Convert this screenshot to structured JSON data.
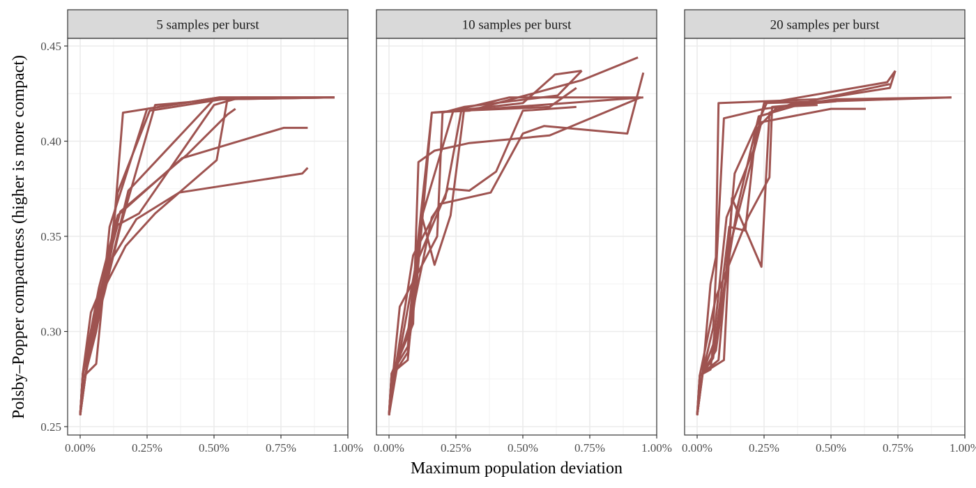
{
  "chart_data": {
    "type": "line",
    "facet_layout": "1 row x 3 columns, shared y axis",
    "xlabel": "Maximum population deviation",
    "ylabel": "Polsby–Popper compactness (higher is more compact)",
    "xlim": [
      0,
      1
    ],
    "ylim": [
      0.25,
      0.45
    ],
    "x_ticks": [
      0,
      0.25,
      0.5,
      0.75,
      1
    ],
    "x_tick_labels": [
      "0.00%",
      "0.25%",
      "0.50%",
      "0.75%",
      "1.00%"
    ],
    "y_ticks": [
      0.25,
      0.3,
      0.35,
      0.4,
      0.45
    ],
    "y_tick_labels": [
      "0.25",
      "0.30",
      "0.35",
      "0.40",
      "0.45"
    ],
    "grid": true,
    "legend": "none",
    "line_color": "#9E5350",
    "panels": [
      {
        "title": "5 samples per burst",
        "series": [
          {
            "x": [
              0.0,
              0.01,
              0.05,
              0.1,
              0.18,
              0.5,
              0.95
            ],
            "y": [
              0.256,
              0.277,
              0.305,
              0.327,
              0.374,
              0.422,
              0.423
            ]
          },
          {
            "x": [
              0.0,
              0.02,
              0.06,
              0.12,
              0.16,
              0.52,
              0.95
            ],
            "y": [
              0.256,
              0.278,
              0.3,
              0.345,
              0.415,
              0.423,
              0.423
            ]
          },
          {
            "x": [
              0.0,
              0.01,
              0.04,
              0.1,
              0.14,
              0.26,
              0.53,
              0.95
            ],
            "y": [
              0.256,
              0.278,
              0.31,
              0.33,
              0.373,
              0.416,
              0.422,
              0.423
            ]
          },
          {
            "x": [
              0.0,
              0.01,
              0.06,
              0.11,
              0.25,
              0.52,
              0.95
            ],
            "y": [
              0.256,
              0.276,
              0.283,
              0.355,
              0.417,
              0.423,
              0.423
            ]
          },
          {
            "x": [
              0.0,
              0.02,
              0.05,
              0.14,
              0.22,
              0.5,
              0.6,
              0.95
            ],
            "y": [
              0.256,
              0.277,
              0.308,
              0.356,
              0.362,
              0.419,
              0.423,
              0.423
            ]
          },
          {
            "x": [
              0.0,
              0.01,
              0.09,
              0.15,
              0.28,
              0.53,
              0.95
            ],
            "y": [
              0.256,
              0.278,
              0.32,
              0.355,
              0.419,
              0.422,
              0.423
            ]
          },
          {
            "x": [
              0.0,
              0.01,
              0.09,
              0.15,
              0.4,
              0.55,
              0.58
            ],
            "y": [
              0.256,
              0.277,
              0.33,
              0.363,
              0.393,
              0.414,
              0.417
            ]
          },
          {
            "x": [
              0.0,
              0.01,
              0.07,
              0.14,
              0.38,
              0.76,
              0.85
            ],
            "y": [
              0.256,
              0.278,
              0.323,
              0.361,
              0.391,
              0.407,
              0.407
            ]
          },
          {
            "x": [
              0.0,
              0.02,
              0.08,
              0.17,
              0.28,
              0.51,
              0.55
            ],
            "y": [
              0.256,
              0.277,
              0.32,
              0.345,
              0.362,
              0.39,
              0.422
            ]
          },
          {
            "x": [
              0.0,
              0.02,
              0.1,
              0.21,
              0.37,
              0.83,
              0.85
            ],
            "y": [
              0.256,
              0.277,
              0.334,
              0.359,
              0.373,
              0.383,
              0.386
            ]
          }
        ]
      },
      {
        "title": "10 samples per burst",
        "series": [
          {
            "x": [
              0.0,
              0.01,
              0.07,
              0.16,
              0.25,
              0.5,
              0.62,
              0.72
            ],
            "y": [
              0.256,
              0.278,
              0.298,
              0.415,
              0.416,
              0.42,
              0.435,
              0.437
            ]
          },
          {
            "x": [
              0.0,
              0.02,
              0.07,
              0.1,
              0.16,
              0.3,
              0.72,
              0.93
            ],
            "y": [
              0.256,
              0.278,
              0.289,
              0.32,
              0.415,
              0.416,
              0.432,
              0.444
            ]
          },
          {
            "x": [
              0.0,
              0.01,
              0.09,
              0.11,
              0.17,
              0.3,
              0.6,
              0.94
            ],
            "y": [
              0.256,
              0.277,
              0.304,
              0.389,
              0.395,
              0.399,
              0.403,
              0.423
            ]
          },
          {
            "x": [
              0.0,
              0.01,
              0.07,
              0.12,
              0.24,
              0.45,
              0.94
            ],
            "y": [
              0.256,
              0.278,
              0.292,
              0.359,
              0.416,
              0.423,
              0.423
            ]
          },
          {
            "x": [
              0.0,
              0.01,
              0.07,
              0.12,
              0.17,
              0.23,
              0.28,
              0.95
            ],
            "y": [
              0.256,
              0.278,
              0.285,
              0.362,
              0.335,
              0.361,
              0.416,
              0.423
            ]
          },
          {
            "x": [
              0.0,
              0.02,
              0.08,
              0.16,
              0.21,
              0.27,
              0.6,
              0.7
            ],
            "y": [
              0.256,
              0.278,
              0.305,
              0.36,
              0.37,
              0.416,
              0.418,
              0.428
            ]
          },
          {
            "x": [
              0.0,
              0.03,
              0.1,
              0.22,
              0.3,
              0.4,
              0.5,
              0.7
            ],
            "y": [
              0.256,
              0.281,
              0.335,
              0.375,
              0.374,
              0.384,
              0.416,
              0.418
            ]
          },
          {
            "x": [
              0.0,
              0.02,
              0.09,
              0.19,
              0.38,
              0.5,
              0.58,
              0.89,
              0.95
            ],
            "y": [
              0.256,
              0.277,
              0.34,
              0.367,
              0.373,
              0.404,
              0.408,
              0.404,
              0.436
            ]
          },
          {
            "x": [
              0.0,
              0.04,
              0.12,
              0.18,
              0.2,
              0.28,
              0.63,
              0.72
            ],
            "y": [
              0.256,
              0.313,
              0.334,
              0.35,
              0.415,
              0.418,
              0.424,
              0.437
            ]
          }
        ]
      },
      {
        "title": "20 samples per burst",
        "series": [
          {
            "x": [
              0.0,
              0.02,
              0.05,
              0.07,
              0.08,
              0.45,
              0.72,
              0.74
            ],
            "y": [
              0.256,
              0.277,
              0.325,
              0.339,
              0.42,
              0.422,
              0.428,
              0.437
            ]
          },
          {
            "x": [
              0.0,
              0.02,
              0.06,
              0.1,
              0.25,
              0.52,
              0.95
            ],
            "y": [
              0.256,
              0.278,
              0.302,
              0.412,
              0.417,
              0.422,
              0.423
            ]
          },
          {
            "x": [
              0.0,
              0.02,
              0.07,
              0.13,
              0.24,
              0.5,
              0.63
            ],
            "y": [
              0.256,
              0.278,
              0.29,
              0.349,
              0.41,
              0.417,
              0.417
            ]
          },
          {
            "x": [
              0.0,
              0.01,
              0.08,
              0.14,
              0.26,
              0.71,
              0.74
            ],
            "y": [
              0.256,
              0.277,
              0.285,
              0.383,
              0.42,
              0.431,
              0.437
            ]
          },
          {
            "x": [
              0.0,
              0.02,
              0.07,
              0.15,
              0.23,
              0.45,
              0.72
            ],
            "y": [
              0.256,
              0.278,
              0.297,
              0.365,
              0.413,
              0.422,
              0.43
            ]
          },
          {
            "x": [
              0.0,
              0.02,
              0.1,
              0.13,
              0.24,
              0.27,
              0.36,
              0.5
            ],
            "y": [
              0.256,
              0.278,
              0.285,
              0.37,
              0.334,
              0.415,
              0.42,
              0.421
            ]
          },
          {
            "x": [
              0.0,
              0.01,
              0.05,
              0.11,
              0.21,
              0.25,
              0.5,
              0.95
            ],
            "y": [
              0.256,
              0.277,
              0.28,
              0.36,
              0.395,
              0.42,
              0.421,
              0.423
            ]
          },
          {
            "x": [
              0.0,
              0.01,
              0.07,
              0.19,
              0.27,
              0.28,
              0.52
            ],
            "y": [
              0.256,
              0.277,
              0.318,
              0.36,
              0.381,
              0.418,
              0.421
            ]
          },
          {
            "x": [
              0.0,
              0.02,
              0.06,
              0.12,
              0.18,
              0.22,
              0.3,
              0.45
            ],
            "y": [
              0.256,
              0.278,
              0.286,
              0.355,
              0.353,
              0.406,
              0.418,
              0.419
            ]
          }
        ]
      }
    ]
  }
}
